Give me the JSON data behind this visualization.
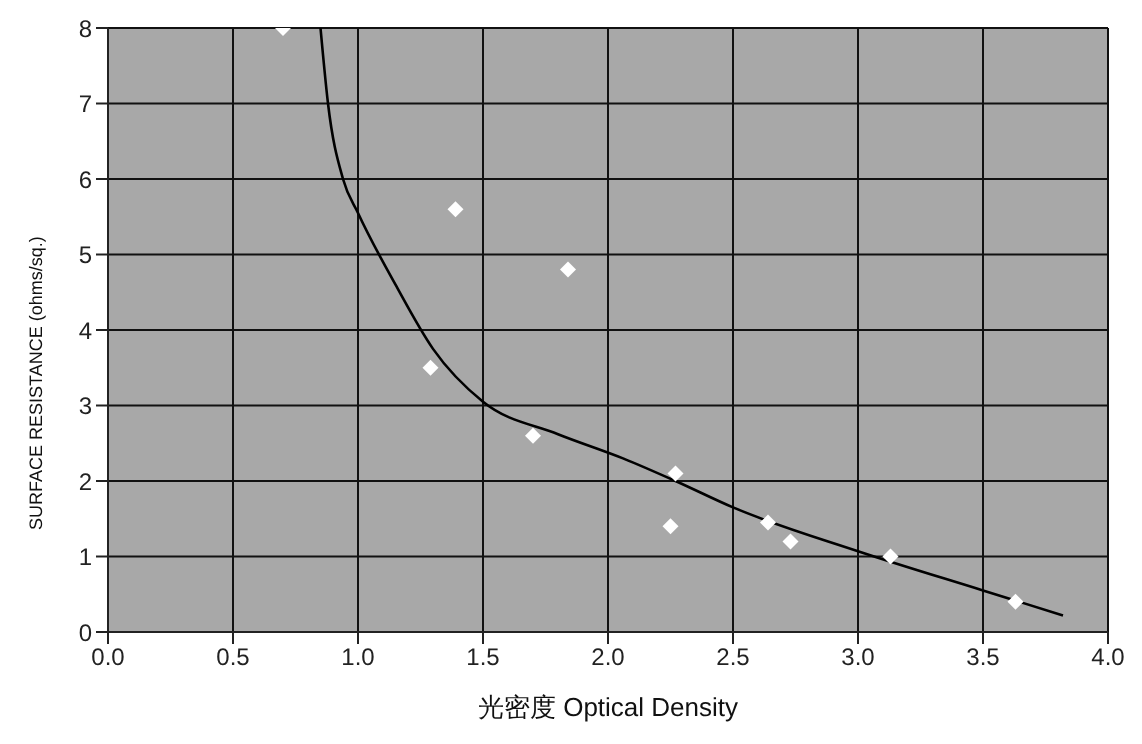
{
  "chart_data": {
    "type": "scatter",
    "xlabel": "光密度 Optical Density",
    "ylabel": "SURFACE RESISTANCE (ohms/sq.)",
    "series": [
      {
        "color": "#ffffff",
        "marker": "diamond",
        "x": [
          0.7,
          1.39,
          1.84,
          1.29,
          1.7,
          2.27,
          2.25,
          2.64,
          2.73,
          3.13,
          3.63
        ],
        "values": [
          8.0,
          5.6,
          4.8,
          3.5,
          2.6,
          2.1,
          1.4,
          1.45,
          1.2,
          1.0,
          0.4
        ]
      },
      {
        "type": "line",
        "color": "#000000",
        "marker": "none",
        "line_style": "solid",
        "x": [
          0.85,
          0.88,
          0.94,
          1.0,
          1.15,
          1.3,
          1.5,
          1.8,
          2.06,
          2.27,
          2.5,
          3.0,
          3.5,
          3.82
        ],
        "values": [
          8.0,
          7.0,
          6.0,
          5.55,
          4.6,
          3.75,
          3.05,
          2.62,
          2.3,
          2.0,
          1.65,
          1.07,
          0.55,
          0.22
        ]
      }
    ],
    "xlim": [
      0,
      4
    ],
    "xticks": [
      {
        "value": 0,
        "label": "0.0"
      },
      {
        "value": 0.5,
        "label": "0.5"
      },
      {
        "value": 1,
        "label": "1.0"
      },
      {
        "value": 1.5,
        "label": "1.5"
      },
      {
        "value": 2,
        "label": "2.0"
      },
      {
        "value": 2.5,
        "label": "2.5"
      },
      {
        "value": 3,
        "label": "3.0"
      },
      {
        "value": 3.5,
        "label": "3.5"
      },
      {
        "value": 4,
        "label": "4.0"
      }
    ],
    "ylim": [
      0,
      8
    ],
    "yticks": [
      0,
      1,
      2,
      3,
      4,
      5,
      6,
      7,
      8
    ],
    "grid": true,
    "legend": false
  }
}
